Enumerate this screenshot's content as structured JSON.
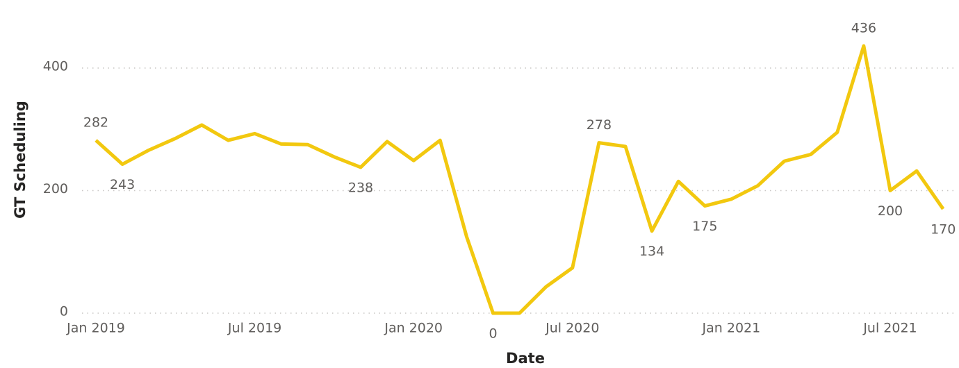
{
  "chart_data": {
    "type": "line",
    "x_label": "Date",
    "y_label": "GT Scheduling",
    "x": [
      "2019-01",
      "2019-02",
      "2019-03",
      "2019-04",
      "2019-05",
      "2019-06",
      "2019-07",
      "2019-08",
      "2019-09",
      "2019-10",
      "2019-11",
      "2019-12",
      "2020-01",
      "2020-02",
      "2020-03",
      "2020-04",
      "2020-05",
      "2020-06",
      "2020-07",
      "2020-08",
      "2020-09",
      "2020-10",
      "2020-11",
      "2020-12",
      "2021-01",
      "2021-02",
      "2021-03",
      "2021-04",
      "2021-05",
      "2021-06",
      "2021-07",
      "2021-08",
      "2021-09"
    ],
    "series": [
      {
        "name": "GT Scheduling",
        "color": "#f2c80f",
        "values": [
          282,
          243,
          266,
          285,
          307,
          282,
          293,
          276,
          275,
          255,
          238,
          280,
          249,
          282,
          125,
          0,
          0,
          43,
          74,
          278,
          272,
          134,
          215,
          175,
          186,
          208,
          248,
          259,
          295,
          436,
          200,
          232,
          170
        ],
        "value_labels": [
          "282",
          "243",
          null,
          null,
          null,
          null,
          null,
          null,
          null,
          null,
          "238",
          null,
          null,
          null,
          null,
          "0",
          null,
          null,
          null,
          "278",
          null,
          "134",
          null,
          "175",
          null,
          null,
          null,
          null,
          null,
          "436",
          "200",
          null,
          "170"
        ]
      }
    ],
    "xticks": [
      {
        "value": "2019-01",
        "label": "Jan 2019"
      },
      {
        "value": "2019-07",
        "label": "Jul 2019"
      },
      {
        "value": "2020-01",
        "label": "Jan 2020"
      },
      {
        "value": "2020-07",
        "label": "Jul 2020"
      },
      {
        "value": "2021-01",
        "label": "Jan 2021"
      },
      {
        "value": "2021-07",
        "label": "Jul 2021"
      }
    ],
    "ylim": [
      0,
      460
    ],
    "yticks": [
      0,
      200,
      400
    ],
    "grid": true
  }
}
